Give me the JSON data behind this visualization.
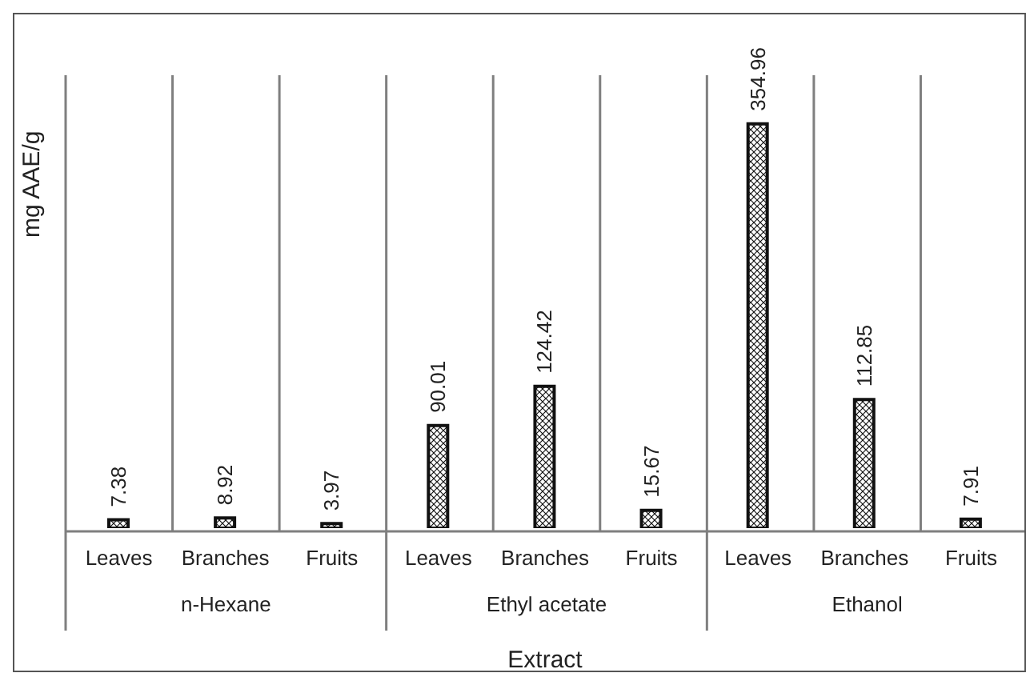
{
  "chart_data": {
    "type": "bar",
    "xlabel": "Extract",
    "ylabel": "mg AAE/g",
    "categories": [
      "Leaves",
      "Branches",
      "Fruits",
      "Leaves",
      "Branches",
      "Fruits",
      "Leaves",
      "Branches",
      "Fruits"
    ],
    "values": [
      7.38,
      8.92,
      3.97,
      90.01,
      124.42,
      15.67,
      354.96,
      112.85,
      7.91
    ],
    "color": "#111111",
    "data_labels": true,
    "grid": "x",
    "annotations": [
      "n-Hexane",
      "Ethyl acetate",
      "Ethanol"
    ]
  }
}
